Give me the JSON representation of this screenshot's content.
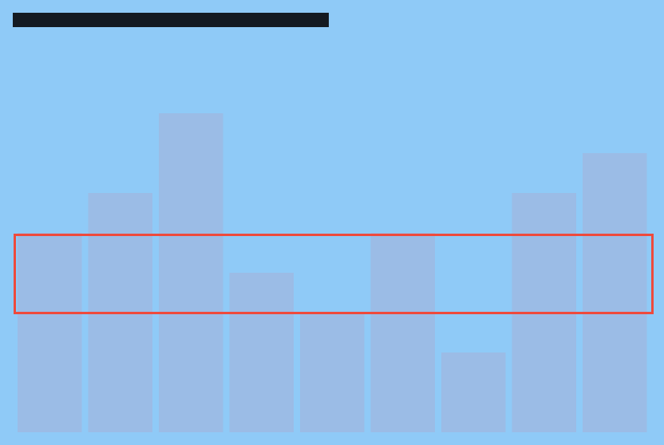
{
  "colors": {
    "background": "#8fcaf7",
    "bar": "#9bbce6",
    "top_bar": "#141a22",
    "highlight_outline": "#ee4a3c"
  },
  "chart_data": {
    "type": "bar",
    "categories": [
      "",
      "",
      "",
      "",
      "",
      "",
      "",
      "",
      ""
    ],
    "values": [
      5,
      6,
      8,
      4,
      3,
      5,
      2,
      6,
      7
    ],
    "ylim": [
      0,
      8
    ],
    "grid": false,
    "legend": "none",
    "highlight_band": [
      3,
      5
    ]
  }
}
